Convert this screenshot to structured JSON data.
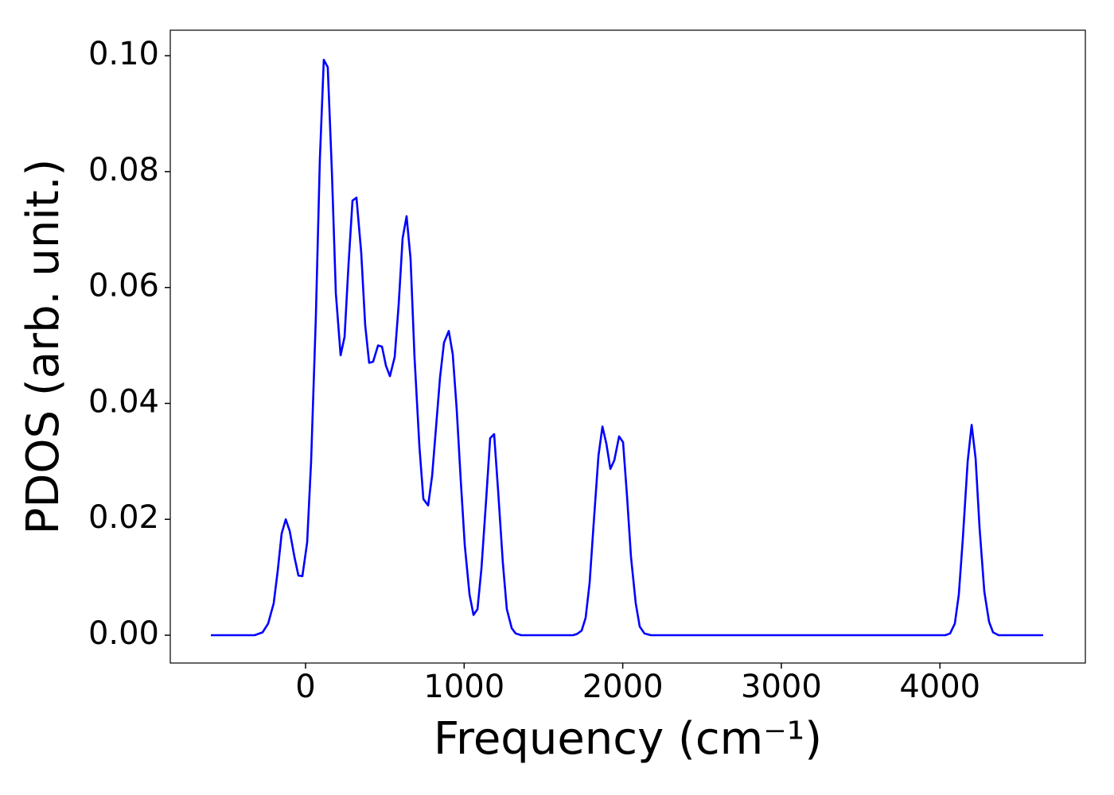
{
  "chart_data": {
    "type": "line",
    "x_label": "Frequency (cm⁻¹)",
    "y_label": "PDOS (arb. unit.)",
    "xlim": [
      -853,
      4917
    ],
    "ylim": [
      -0.0048,
      0.1044
    ],
    "xticks": [
      0,
      1000,
      2000,
      3000,
      4000
    ],
    "yticks": [
      {
        "value": 0,
        "label": "0.00"
      },
      {
        "value": 0.02,
        "label": "0.02"
      },
      {
        "value": 0.04,
        "label": "0.04"
      },
      {
        "value": 0.06,
        "label": "0.06"
      },
      {
        "value": 0.08,
        "label": "0.08"
      },
      {
        "value": 0.1,
        "label": "0.10"
      }
    ],
    "grid": false,
    "x": [
      -597,
      -321,
      -271,
      -236,
      -201,
      -176,
      -151,
      -125,
      -100,
      -70,
      -45,
      -20,
      10,
      35,
      65,
      90,
      115,
      140,
      166,
      191,
      221,
      246,
      271,
      296,
      321,
      351,
      376,
      401,
      426,
      457,
      482,
      507,
      532,
      562,
      587,
      612,
      637,
      662,
      687,
      718,
      743,
      773,
      798,
      823,
      848,
      873,
      903,
      928,
      953,
      978,
      1004,
      1034,
      1059,
      1084,
      1109,
      1139,
      1164,
      1189,
      1214,
      1244,
      1269,
      1300,
      1325,
      1360,
      1686,
      1711,
      1741,
      1766,
      1791,
      1816,
      1847,
      1872,
      1897,
      1922,
      1947,
      1977,
      2002,
      2027,
      2052,
      2082,
      2107,
      2137,
      2178,
      4034,
      4064,
      4094,
      4119,
      4144,
      4175,
      4200,
      4225,
      4250,
      4280,
      4310,
      4335,
      4370,
      4651
    ],
    "series": [
      {
        "name": "PDOS",
        "color": "#0000ff",
        "values": [
          0,
          0,
          0.0005,
          0.002,
          0.0055,
          0.011,
          0.0175,
          0.02,
          0.018,
          0.0135,
          0.0103,
          0.0102,
          0.016,
          0.03,
          0.055,
          0.082,
          0.0993,
          0.098,
          0.08,
          0.059,
          0.0483,
          0.0515,
          0.064,
          0.075,
          0.0755,
          0.066,
          0.0535,
          0.047,
          0.0472,
          0.05,
          0.0498,
          0.0465,
          0.0447,
          0.048,
          0.057,
          0.0685,
          0.0723,
          0.065,
          0.048,
          0.0325,
          0.0235,
          0.0224,
          0.0275,
          0.036,
          0.0445,
          0.0505,
          0.0525,
          0.0485,
          0.039,
          0.027,
          0.0155,
          0.007,
          0.0035,
          0.0045,
          0.0115,
          0.0235,
          0.034,
          0.0347,
          0.025,
          0.0125,
          0.0045,
          0.0012,
          0.0003,
          0,
          0,
          0.0002,
          0.0008,
          0.003,
          0.009,
          0.019,
          0.031,
          0.036,
          0.033,
          0.0287,
          0.0302,
          0.0343,
          0.0333,
          0.024,
          0.0135,
          0.0055,
          0.0015,
          0.0003,
          0,
          0,
          0.0003,
          0.002,
          0.007,
          0.0165,
          0.03,
          0.0363,
          0.0305,
          0.0185,
          0.0075,
          0.0023,
          0.0005,
          0,
          0
        ]
      }
    ]
  }
}
